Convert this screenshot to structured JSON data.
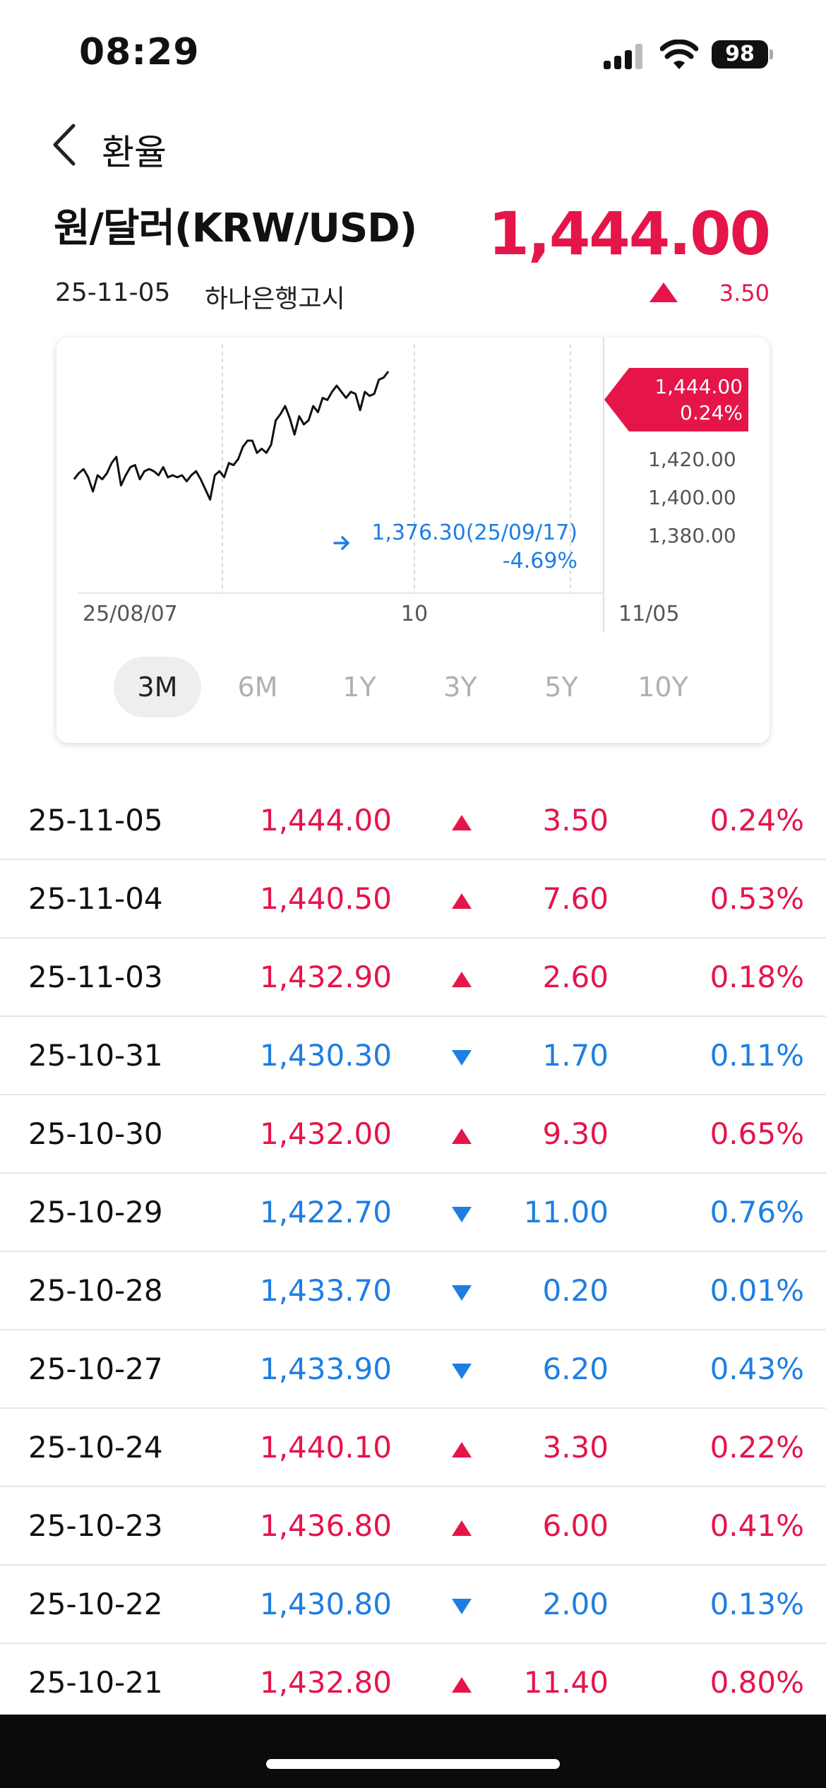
{
  "status_bar": {
    "time": "08:29",
    "battery": "98"
  },
  "nav": {
    "title": "환율"
  },
  "header": {
    "pair": "원/달러(KRW/USD)",
    "price": "1,444.00",
    "date": "25-11-05",
    "source": "하나은행고시",
    "change": "3.50",
    "direction": "up"
  },
  "chart": {
    "tag_price": "1,444.00",
    "tag_pct": "0.24%",
    "min_label": "1,376.30(25/09/17)",
    "min_pct": "-4.69%",
    "y_ticks": [
      "1,420.00",
      "1,400.00",
      "1,380.00"
    ],
    "x_ticks": [
      "25/08/07",
      "10",
      "11/05"
    ],
    "ranges": [
      "3M",
      "6M",
      "1Y",
      "3Y",
      "5Y",
      "10Y"
    ],
    "active_range": "3M"
  },
  "chart_data": {
    "type": "line",
    "x_start": "25/08/07",
    "x_end": "11/05",
    "ylim": [
      1368,
      1452
    ],
    "series": [
      {
        "values": [
          1391,
          1394,
          1396,
          1392,
          1385,
          1393,
          1391,
          1394,
          1399,
          1402,
          1388,
          1393,
          1397,
          1398,
          1391,
          1395,
          1396,
          1395,
          1393,
          1397,
          1392,
          1393,
          1392,
          1393,
          1390,
          1393,
          1395,
          1391,
          1386,
          1381,
          1393,
          1395,
          1392,
          1399,
          1398,
          1401,
          1407,
          1410,
          1410,
          1404,
          1406,
          1404,
          1408,
          1420,
          1423,
          1427,
          1421,
          1413,
          1422,
          1418,
          1420,
          1427,
          1424,
          1431,
          1430,
          1434,
          1437,
          1434,
          1431,
          1434,
          1433,
          1425,
          1434,
          1432,
          1433,
          1440,
          1441,
          1444
        ]
      }
    ],
    "min_point": {
      "value": 1376.3,
      "date": "25/09/17"
    }
  },
  "rows": [
    {
      "date": "25-11-05",
      "rate": "1,444.00",
      "dir": "up",
      "diff": "3.50",
      "pct": "0.24%"
    },
    {
      "date": "25-11-04",
      "rate": "1,440.50",
      "dir": "up",
      "diff": "7.60",
      "pct": "0.53%"
    },
    {
      "date": "25-11-03",
      "rate": "1,432.90",
      "dir": "up",
      "diff": "2.60",
      "pct": "0.18%"
    },
    {
      "date": "25-10-31",
      "rate": "1,430.30",
      "dir": "down",
      "diff": "1.70",
      "pct": "0.11%"
    },
    {
      "date": "25-10-30",
      "rate": "1,432.00",
      "dir": "up",
      "diff": "9.30",
      "pct": "0.65%"
    },
    {
      "date": "25-10-29",
      "rate": "1,422.70",
      "dir": "down",
      "diff": "11.00",
      "pct": "0.76%"
    },
    {
      "date": "25-10-28",
      "rate": "1,433.70",
      "dir": "down",
      "diff": "0.20",
      "pct": "0.01%"
    },
    {
      "date": "25-10-27",
      "rate": "1,433.90",
      "dir": "down",
      "diff": "6.20",
      "pct": "0.43%"
    },
    {
      "date": "25-10-24",
      "rate": "1,440.10",
      "dir": "up",
      "diff": "3.30",
      "pct": "0.22%"
    },
    {
      "date": "25-10-23",
      "rate": "1,436.80",
      "dir": "up",
      "diff": "6.00",
      "pct": "0.41%"
    },
    {
      "date": "25-10-22",
      "rate": "1,430.80",
      "dir": "down",
      "diff": "2.00",
      "pct": "0.13%"
    },
    {
      "date": "25-10-21",
      "rate": "1,432.80",
      "dir": "up",
      "diff": "11.40",
      "pct": "0.80%"
    }
  ],
  "colors": {
    "up": "#e5154a",
    "down": "#1e7ee3",
    "tab_active_bg": "#eeeeee"
  }
}
